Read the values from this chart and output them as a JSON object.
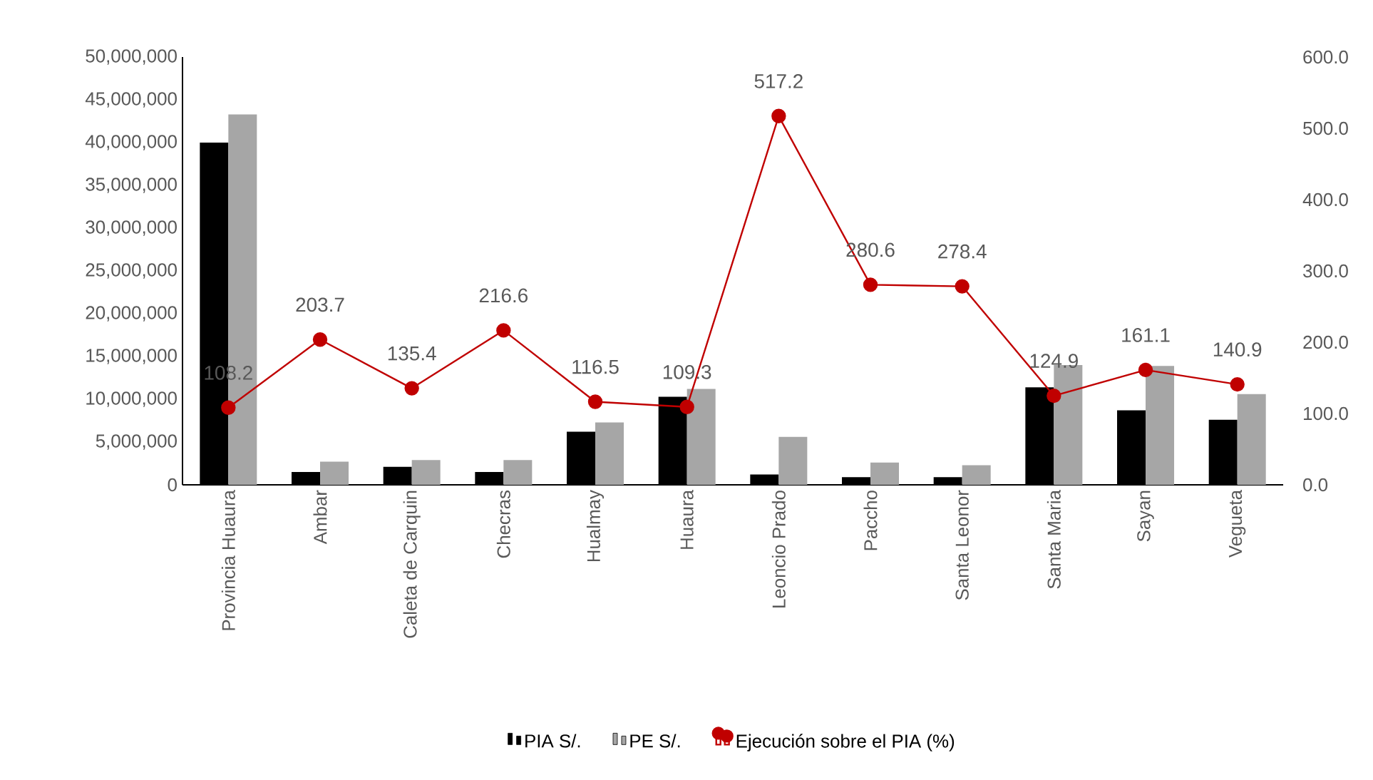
{
  "chart_data": {
    "type": "bar",
    "categories": [
      "Provincia Huaura",
      "Ambar",
      "Caleta de Carquin",
      "Checras",
      "Hualmay",
      "Huaura",
      "Leoncio Prado",
      "Paccho",
      "Santa Leonor",
      "Santa Maria",
      "Sayan",
      "Vegueta"
    ],
    "series": [
      {
        "name": "PIA S/.",
        "color": "#000000",
        "values": [
          40000000,
          1500000,
          2100000,
          1500000,
          6200000,
          10300000,
          1200000,
          900000,
          900000,
          11400000,
          8700000,
          7600000
        ]
      },
      {
        "name": "PE S/.",
        "color": "#a6a6a6",
        "values": [
          43300000,
          2700000,
          2900000,
          2900000,
          7300000,
          11200000,
          5600000,
          2600000,
          2300000,
          14000000,
          13900000,
          10600000
        ]
      },
      {
        "name": "Ejecución sobre el PIA (%)",
        "type": "line",
        "axis": "y2",
        "color": "#c00000",
        "marker": "circle",
        "data_labels": true,
        "values": [
          108.2,
          203.7,
          135.4,
          216.6,
          116.5,
          109.3,
          517.2,
          280.6,
          278.4,
          124.9,
          161.1,
          140.9
        ]
      }
    ],
    "ylim": [
      0,
      50000000
    ],
    "yticks": [
      {
        "value": 0,
        "label": "0"
      },
      {
        "value": 5000000,
        "label": "5,000,000"
      },
      {
        "value": 10000000,
        "label": "10,000,000"
      },
      {
        "value": 15000000,
        "label": "15,000,000"
      },
      {
        "value": 20000000,
        "label": "20,000,000"
      },
      {
        "value": 25000000,
        "label": "25,000,000"
      },
      {
        "value": 30000000,
        "label": "30,000,000"
      },
      {
        "value": 35000000,
        "label": "35,000,000"
      },
      {
        "value": 40000000,
        "label": "40,000,000"
      },
      {
        "value": 45000000,
        "label": "45,000,000"
      },
      {
        "value": 50000000,
        "label": "50,000,000"
      }
    ],
    "y2lim": [
      0,
      600
    ],
    "y2ticks": [
      {
        "value": 0,
        "label": "0.0"
      },
      {
        "value": 100,
        "label": "100.0"
      },
      {
        "value": 200,
        "label": "200.0"
      },
      {
        "value": 300,
        "label": "300.0"
      },
      {
        "value": 400,
        "label": "400.0"
      },
      {
        "value": 500,
        "label": "500.0"
      },
      {
        "value": 600,
        "label": "600.0"
      }
    ],
    "grid": false,
    "legend": "bottom"
  }
}
